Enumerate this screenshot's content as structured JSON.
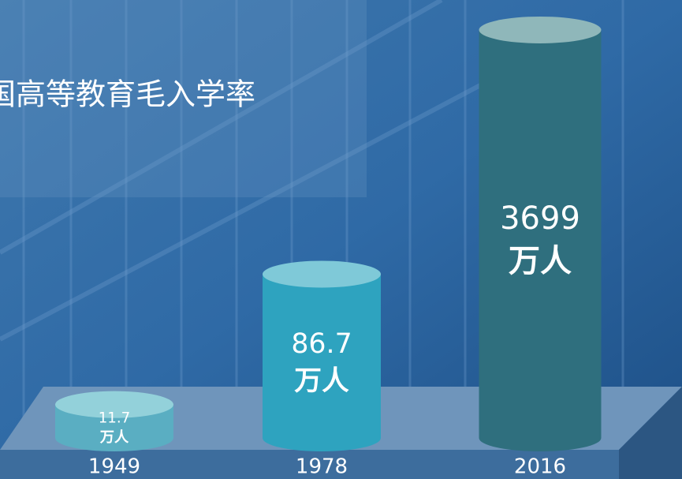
{
  "chart_data": {
    "type": "cylinder",
    "title": "国高等教育毛入学率",
    "categories": [
      "1949",
      "1978",
      "2016"
    ],
    "values": [
      11.7,
      86.7,
      3699
    ],
    "unit": "万人",
    "colors": [
      "#5aaec2",
      "#2ea3bf",
      "#2f6f7e"
    ],
    "top_colors": [
      "#93d1da",
      "#7fc9d8",
      "#8fb7ba"
    ],
    "log_scale": true,
    "ylim": [
      7,
      4600
    ]
  }
}
